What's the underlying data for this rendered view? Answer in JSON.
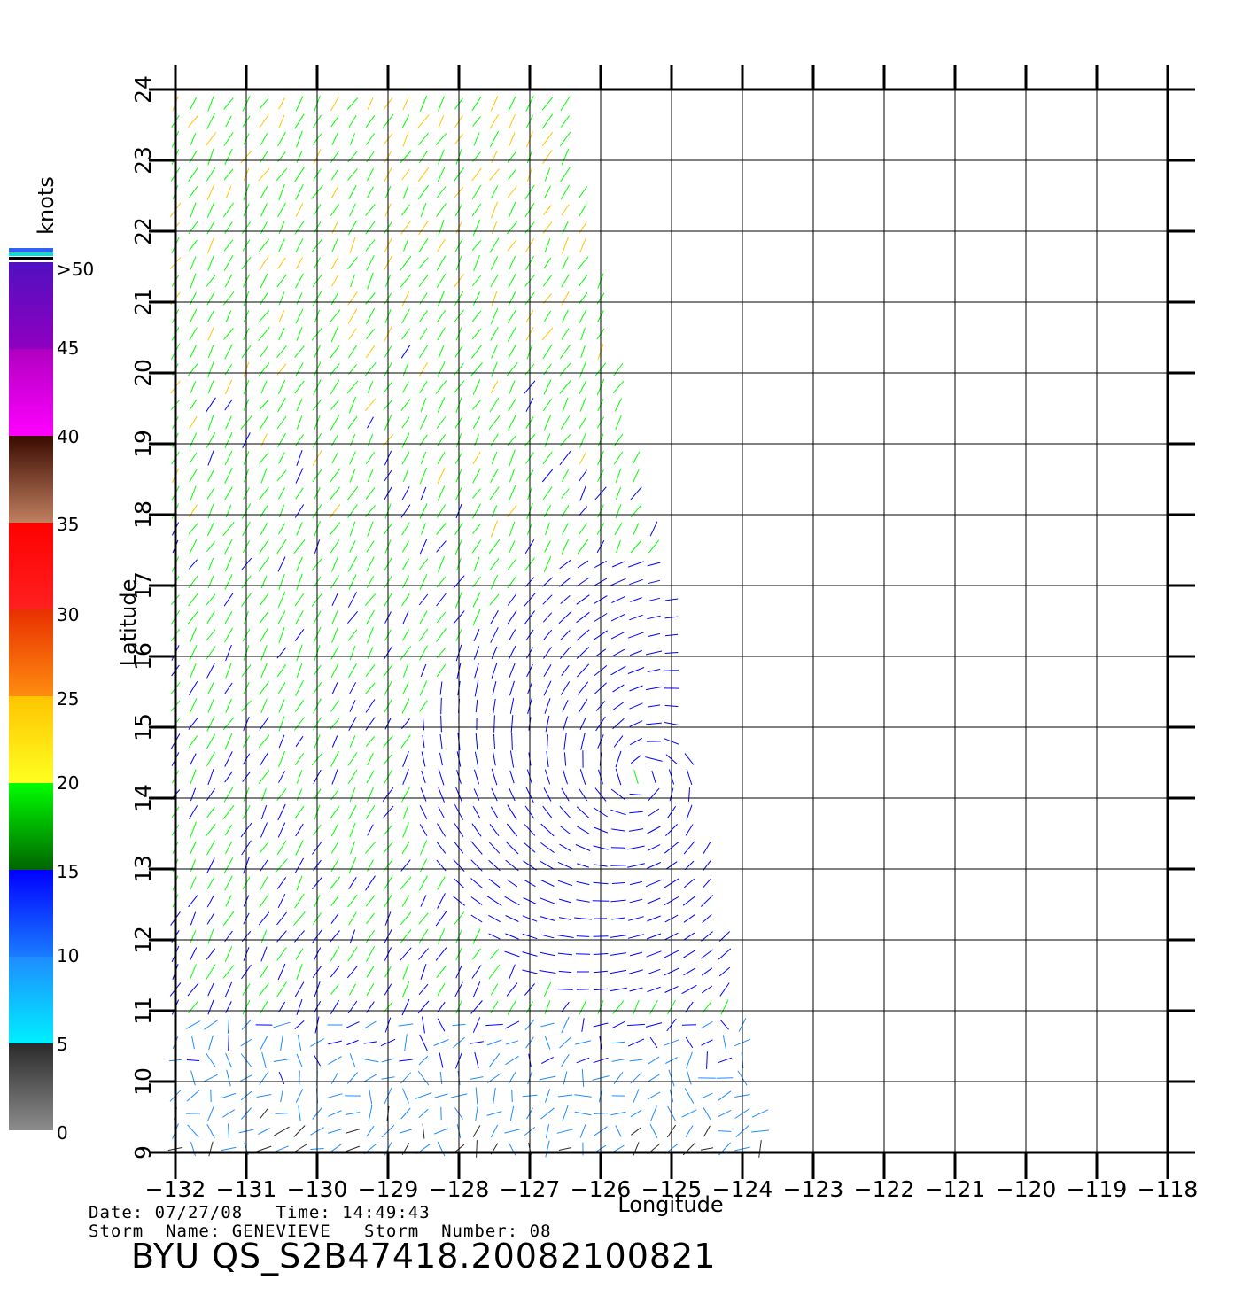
{
  "map": {
    "x_axis_title": "Longitude",
    "y_axis_title": "Latitude",
    "lon_ticks": [
      "-132",
      "-131",
      "-130",
      "-129",
      "-128",
      "-127",
      "-126",
      "-125",
      "-124",
      "-123",
      "-122",
      "-121",
      "-120",
      "-119",
      "-118"
    ],
    "lat_ticks": [
      "9",
      "10",
      "11",
      "12",
      "13",
      "14",
      "15",
      "16",
      "17",
      "18",
      "19",
      "20",
      "21",
      "22",
      "23",
      "24"
    ],
    "lon_range": [
      -132,
      -118
    ],
    "lat_range": [
      9,
      24
    ],
    "storm_center": {
      "lon": -125.4,
      "lat": 14.3
    },
    "swath_edge": [
      {
        "lat": 24,
        "lon": -126.5
      },
      {
        "lat": 21,
        "lon": -125.9
      },
      {
        "lat": 19,
        "lon": -125.5
      },
      {
        "lat": 17,
        "lon": -125.0
      },
      {
        "lat": 16,
        "lon": -124.9
      },
      {
        "lat": 15,
        "lon": -124.8
      },
      {
        "lat": 13,
        "lon": -124.4
      },
      {
        "lat": 11,
        "lon": -124.0
      },
      {
        "lat": 9,
        "lon": -123.6
      }
    ]
  },
  "legend": {
    "title": "knots",
    "labels": [
      ">50",
      "45",
      "40",
      "35",
      "30",
      "25",
      "20",
      "15",
      "10",
      "5",
      "0"
    ],
    "bands": [
      {
        "from": 0,
        "to": 5,
        "top": "#2a2a2a",
        "bottom": "#8c8c8c"
      },
      {
        "from": 5,
        "to": 10,
        "top": "#1e8cff",
        "bottom": "#00f0ff"
      },
      {
        "from": 10,
        "to": 15,
        "top": "#0000ff",
        "bottom": "#1a7cff"
      },
      {
        "from": 15,
        "to": 20,
        "top": "#00ff00",
        "bottom": "#006400"
      },
      {
        "from": 20,
        "to": 25,
        "top": "#ffc400",
        "bottom": "#ffff20"
      },
      {
        "from": 25,
        "to": 30,
        "top": "#e83000",
        "bottom": "#ff8c10"
      },
      {
        "from": 30,
        "to": 35,
        "top": "#ff0000",
        "bottom": "#ff2020"
      },
      {
        "from": 35,
        "to": 40,
        "top": "#3a0a00",
        "bottom": "#c08060"
      },
      {
        "from": 40,
        "to": 45,
        "top": "#b000c0",
        "bottom": "#ff00ff"
      },
      {
        "from": 45,
        "to": 50,
        "top": "#5010c0",
        "bottom": "#9000c0"
      }
    ],
    "cap_colors": [
      "#3060ff",
      "#00e0e0",
      "#000000"
    ]
  },
  "footer": {
    "date_label": "Date:",
    "date": "07/27/08",
    "time_label": "Time:",
    "time": "14:49:43",
    "storm_name_label": "Storm  Name:",
    "storm_name": "GENEVIEVE",
    "storm_number_label": "Storm  Number:",
    "storm_number": "08",
    "product_title": "BYU  QS_S2B47418.20082100821"
  }
}
